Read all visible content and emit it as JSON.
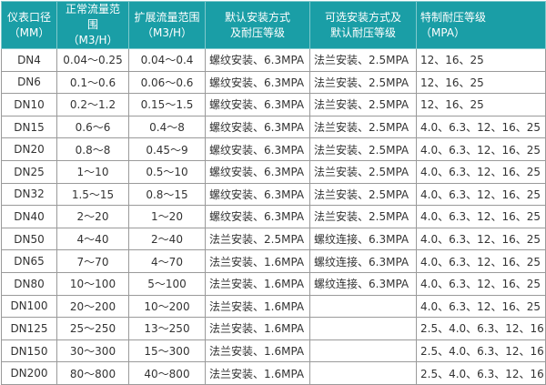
{
  "headers": [
    [
      "仪表口径",
      "（MM）"
    ],
    [
      "正常流量范围",
      "（M3/H）"
    ],
    [
      "扩展流量范围",
      "（M3/H）"
    ],
    [
      "默认安装方式",
      "及耐压等级"
    ],
    [
      "可选安装方式及",
      "默认耐压等级"
    ],
    [
      "特制耐压等级",
      "（MPA）"
    ]
  ],
  "rows": [
    [
      "DN4",
      "0.04～0.25",
      "0.04～0.4",
      "螺纹安装、6.3MPA",
      "法兰安装、2.5MPA",
      "12、16、25"
    ],
    [
      "DN6",
      "0.1～0.6",
      "0.06～0.6",
      "螺纹安装、6.3MPA",
      "法兰安装、2.5MPA",
      "12、16、25"
    ],
    [
      "DN10",
      "0.2～1.2",
      "0.15～1.5",
      "螺纹安装、6.3MPA",
      "法兰安装、2.5MPA",
      "12、16、25"
    ],
    [
      "DN15",
      "0.6～6",
      "0.4～8",
      "螺纹安装、6.3MPA",
      "法兰安装、2.5MPA",
      "4.0、6.3、12、16、25"
    ],
    [
      "DN20",
      "0.8～8",
      "0.45～9",
      "螺纹安装、6.3MPA",
      "法兰安装、2.5MPA",
      "4.0、6.3、12、16、25"
    ],
    [
      "DN25",
      "1～10",
      "0.5～10",
      "螺纹安装、6.3MPA",
      "法兰安装、2.5MPA",
      "4.0、6.3、12、16、25"
    ],
    [
      "DN32",
      "1.5～15",
      "0.8～15",
      "螺纹安装、6.3MPA",
      "法兰安装、2.5MPA",
      "4.0、6.3、12、16、25"
    ],
    [
      "DN40",
      "2～20",
      "1～20",
      "螺纹安装、6.3MPA",
      "法兰安装、2.5MPA",
      "4.0、6.3、12、16、25"
    ],
    [
      "DN50",
      "4～40",
      "2～40",
      "法兰安装、2.5MPA",
      "螺纹连接、6.3MPA",
      "4.0、6.3、12、16、25"
    ],
    [
      "DN65",
      "7～70",
      "4～70",
      "法兰安装、1.6MPA",
      "螺纹连接、6.3MPA",
      "4.0、6.3、12、16、25"
    ],
    [
      "DN80",
      "10～100",
      "5～100",
      "法兰安装、1.6MPA",
      "螺纹连接、6.3MPA",
      "4.0、6.3、12、16、25"
    ],
    [
      "DN100",
      "20～200",
      "10～200",
      "法兰安装、1.6MPA",
      "",
      "4.0、6.3、12、16、25"
    ],
    [
      "DN125",
      "25～250",
      "13～250",
      "法兰安装、1.6MPA",
      "",
      "2.5、4.0、6.3、12、16"
    ],
    [
      "DN150",
      "30～300",
      "15～300",
      "法兰安装、1.6MPA",
      "",
      "2.5、4.0、6.3、12、16"
    ],
    [
      "DN200",
      "80～800",
      "40～800",
      "法兰安装、1.6MPA",
      "",
      "2.5、4.0、6.3、12、16"
    ]
  ],
  "colors": {
    "header_bg": "#1a9ea6",
    "header_text": "#ffffff"
  }
}
